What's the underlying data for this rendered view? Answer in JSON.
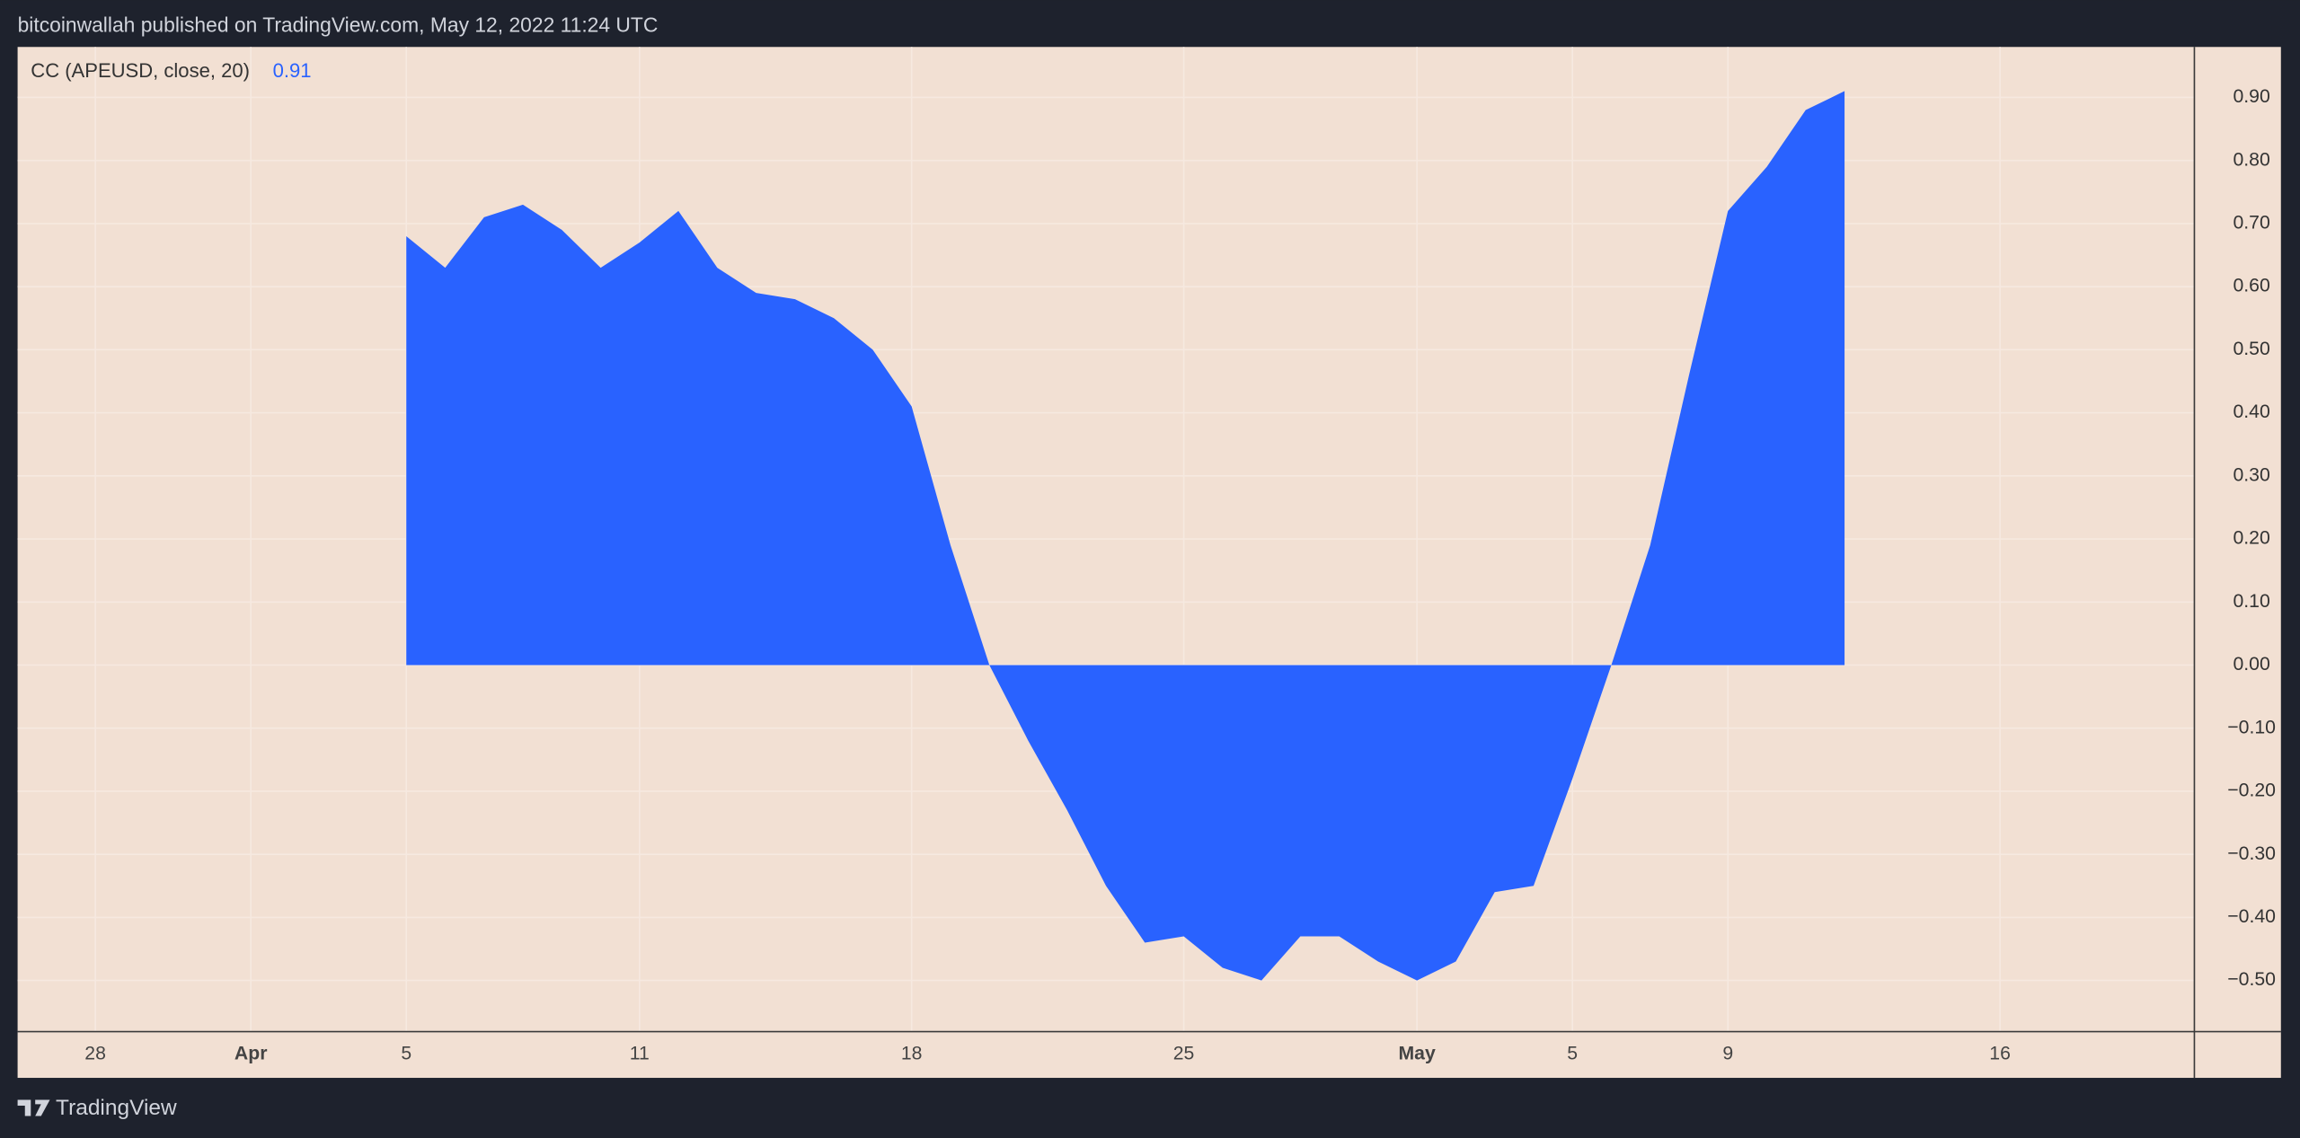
{
  "header": "bitcoinwallah published on TradingView.com, May 12, 2022 11:24 UTC",
  "footer": "TradingView",
  "chart_data": {
    "type": "area",
    "x": [
      "Apr 5",
      "Apr 6",
      "Apr 7",
      "Apr 8",
      "Apr 9",
      "Apr 10",
      "Apr 11",
      "Apr 12",
      "Apr 13",
      "Apr 14",
      "Apr 15",
      "Apr 16",
      "Apr 17",
      "Apr 18",
      "Apr 19",
      "Apr 20",
      "Apr 21",
      "Apr 22",
      "Apr 23",
      "Apr 24",
      "Apr 25",
      "Apr 26",
      "Apr 27",
      "Apr 28",
      "Apr 29",
      "Apr 30",
      "May 1",
      "May 2",
      "May 3",
      "May 4",
      "May 5",
      "May 6",
      "May 7",
      "May 8",
      "May 9",
      "May 10",
      "May 11",
      "May 12"
    ],
    "series": [
      {
        "name": "CC (APEUSD, close, 20)",
        "color": "#2962ff",
        "values": [
          0.68,
          0.63,
          0.71,
          0.73,
          0.69,
          0.63,
          0.67,
          0.72,
          0.63,
          0.59,
          0.58,
          0.55,
          0.5,
          0.41,
          0.19,
          0.0,
          -0.12,
          -0.23,
          -0.35,
          -0.44,
          -0.43,
          -0.48,
          -0.5,
          -0.43,
          -0.43,
          -0.47,
          -0.5,
          -0.47,
          -0.36,
          -0.35,
          -0.18,
          0.0,
          0.19,
          0.46,
          0.72,
          0.79,
          0.88,
          0.91
        ]
      }
    ],
    "xlim": [
      "Mar 26",
      "May 21"
    ],
    "xticks": [
      {
        "value": "Mar 28",
        "label": "28"
      },
      {
        "value": "Apr 1",
        "label": "Apr"
      },
      {
        "value": "Apr 5",
        "label": "5"
      },
      {
        "value": "Apr 11",
        "label": "11"
      },
      {
        "value": "Apr 18",
        "label": "18"
      },
      {
        "value": "Apr 25",
        "label": "25"
      },
      {
        "value": "May 1",
        "label": "May"
      },
      {
        "value": "May 5",
        "label": "5"
      },
      {
        "value": "May 9",
        "label": "9"
      },
      {
        "value": "May 16",
        "label": "16"
      }
    ],
    "ylim": [
      -0.58,
      0.98
    ],
    "yticks": [
      {
        "value": 0.9,
        "label": "0.90"
      },
      {
        "value": 0.8,
        "label": "0.80"
      },
      {
        "value": 0.7,
        "label": "0.70"
      },
      {
        "value": 0.6,
        "label": "0.60"
      },
      {
        "value": 0.5,
        "label": "0.50"
      },
      {
        "value": 0.4,
        "label": "0.40"
      },
      {
        "value": 0.3,
        "label": "0.30"
      },
      {
        "value": 0.2,
        "label": "0.20"
      },
      {
        "value": 0.1,
        "label": "0.10"
      },
      {
        "value": 0,
        "label": "0.00"
      },
      {
        "value": -0.1,
        "label": "−0.10"
      },
      {
        "value": -0.2,
        "label": "−0.20"
      },
      {
        "value": -0.3,
        "label": "−0.30"
      },
      {
        "value": -0.4,
        "label": "−0.40"
      },
      {
        "value": -0.5,
        "label": "−0.50"
      }
    ],
    "grid": true
  }
}
